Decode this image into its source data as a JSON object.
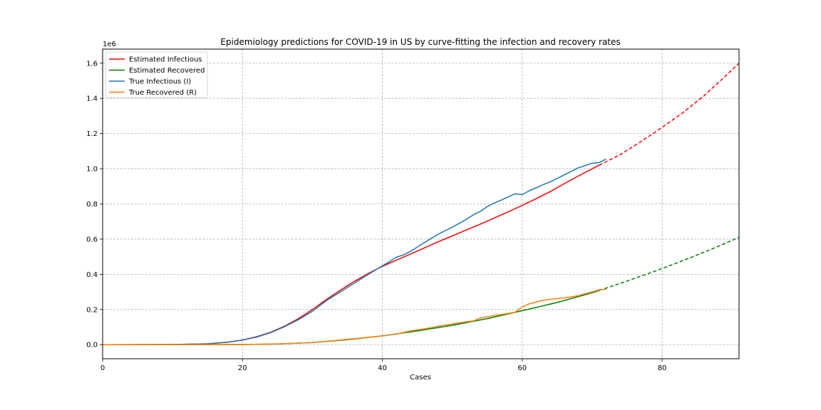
{
  "chart_data": {
    "type": "line",
    "title": "Epidemiology predictions for COVID-19 in US by curve-fitting the infection and recovery rates",
    "xlabel": "Cases",
    "ylabel": "",
    "y_offset_label": "1e6",
    "xlim": [
      0,
      91
    ],
    "ylim": [
      -0.08,
      1.68
    ],
    "x_ticks": [
      0,
      20,
      40,
      60,
      80
    ],
    "x_tick_labels": [
      "0",
      "20",
      "40",
      "60",
      "80"
    ],
    "y_ticks": [
      0.0,
      0.2,
      0.4,
      0.6,
      0.8,
      1.0,
      1.2,
      1.4,
      1.6
    ],
    "y_tick_labels": [
      "0.0",
      "0.2",
      "0.4",
      "0.6",
      "0.8",
      "1.0",
      "1.2",
      "1.4",
      "1.6"
    ],
    "grid": true,
    "legend_position": "top-left",
    "legend": [
      "Estimated Infectious",
      "Estimated Recovered",
      "True Infectious (I)",
      "True Recovered (R)"
    ],
    "series": [
      {
        "name": "Estimated Infectious",
        "color": "#ff0000",
        "style": "solid",
        "x": [
          0,
          10,
          15,
          18,
          20,
          22,
          24,
          26,
          28,
          30,
          32,
          34,
          36,
          38,
          40,
          42,
          44,
          46,
          48,
          50,
          52,
          54,
          56,
          58,
          60,
          62,
          64,
          66,
          68,
          70,
          71
        ],
        "y": [
          0.0,
          0.001,
          0.005,
          0.015,
          0.027,
          0.045,
          0.07,
          0.105,
          0.148,
          0.2,
          0.257,
          0.31,
          0.36,
          0.405,
          0.445,
          0.48,
          0.515,
          0.55,
          0.585,
          0.618,
          0.652,
          0.685,
          0.72,
          0.755,
          0.792,
          0.83,
          0.87,
          0.915,
          0.958,
          1.0,
          1.02
        ]
      },
      {
        "name": "Estimated Infectious (projection)",
        "color": "#ff0000",
        "style": "dashed",
        "x": [
          71,
          74,
          77,
          80,
          83,
          86,
          89,
          91
        ],
        "y": [
          1.02,
          1.08,
          1.155,
          1.235,
          1.32,
          1.415,
          1.525,
          1.6
        ]
      },
      {
        "name": "Estimated Recovered",
        "color": "#008000",
        "style": "solid",
        "x": [
          0,
          20,
          25,
          30,
          35,
          40,
          45,
          50,
          55,
          60,
          65,
          70,
          71
        ],
        "y": [
          0.0,
          0.001,
          0.004,
          0.012,
          0.028,
          0.05,
          0.078,
          0.11,
          0.148,
          0.193,
          0.24,
          0.295,
          0.308
        ]
      },
      {
        "name": "Estimated Recovered (projection)",
        "color": "#008000",
        "style": "dashed",
        "x": [
          71,
          75,
          79,
          83,
          87,
          91
        ],
        "y": [
          0.308,
          0.362,
          0.418,
          0.478,
          0.542,
          0.61
        ]
      },
      {
        "name": "True Infectious (I)",
        "color": "#1f77b4",
        "style": "solid",
        "x": [
          0,
          10,
          15,
          18,
          20,
          22,
          24,
          26,
          28,
          30,
          32,
          34,
          36,
          38,
          40,
          41,
          42,
          43,
          44,
          46,
          48,
          50,
          52,
          53,
          54,
          55,
          56,
          57,
          58,
          59,
          60,
          61,
          62,
          63,
          64,
          65,
          66,
          67,
          68,
          69,
          70,
          71,
          72
        ],
        "y": [
          0.0,
          0.001,
          0.005,
          0.014,
          0.026,
          0.043,
          0.068,
          0.102,
          0.142,
          0.19,
          0.25,
          0.3,
          0.35,
          0.4,
          0.448,
          0.472,
          0.497,
          0.51,
          0.53,
          0.58,
          0.628,
          0.668,
          0.712,
          0.738,
          0.757,
          0.785,
          0.805,
          0.822,
          0.84,
          0.858,
          0.853,
          0.875,
          0.892,
          0.91,
          0.925,
          0.945,
          0.965,
          0.985,
          1.005,
          1.018,
          1.032,
          1.035,
          1.055
        ]
      },
      {
        "name": "True Recovered (R)",
        "color": "#ff7f0e",
        "style": "solid",
        "x": [
          0,
          20,
          25,
          30,
          35,
          40,
          42,
          44,
          46,
          48,
          50,
          52,
          53,
          54,
          56,
          58,
          59,
          60,
          61,
          62,
          63,
          64,
          65,
          66,
          67,
          68,
          69,
          70,
          71,
          72
        ],
        "y": [
          0.0,
          0.001,
          0.004,
          0.012,
          0.03,
          0.05,
          0.06,
          0.078,
          0.09,
          0.105,
          0.118,
          0.13,
          0.135,
          0.152,
          0.165,
          0.178,
          0.185,
          0.215,
          0.232,
          0.242,
          0.252,
          0.258,
          0.262,
          0.266,
          0.272,
          0.278,
          0.29,
          0.3,
          0.312,
          0.315
        ]
      }
    ]
  }
}
